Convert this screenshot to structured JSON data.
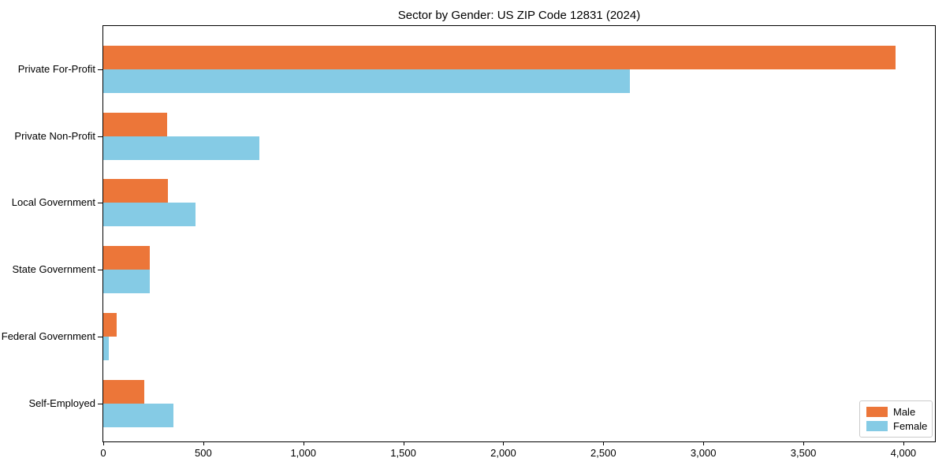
{
  "chart_data": {
    "type": "bar",
    "orientation": "horizontal",
    "title": "Sector by Gender: US ZIP Code 12831 (2024)",
    "categories": [
      "Private For-Profit",
      "Private Non-Profit",
      "Local Government",
      "State Government",
      "Federal Government",
      "Self-Employed"
    ],
    "series": [
      {
        "name": "Male",
        "color": "#ec7639",
        "values": [
          3960,
          318,
          322,
          233,
          68,
          206
        ]
      },
      {
        "name": "Female",
        "color": "#85cbe5",
        "values": [
          2634,
          781,
          463,
          231,
          28,
          350
        ]
      }
    ],
    "xlabel": "",
    "ylabel": "",
    "xlim": [
      0,
      4158
    ],
    "xticks": [
      0,
      500,
      1000,
      1500,
      2000,
      2500,
      3000,
      3500,
      4000
    ],
    "xtick_labels": [
      "0",
      "500",
      "1,000",
      "1,500",
      "2,000",
      "2,500",
      "3,000",
      "3,500",
      "4,000"
    ],
    "grid": false,
    "legend": {
      "position": "lower-right",
      "entries": [
        "Male",
        "Female"
      ]
    },
    "axis_color": "#000000",
    "background": "#ffffff"
  }
}
